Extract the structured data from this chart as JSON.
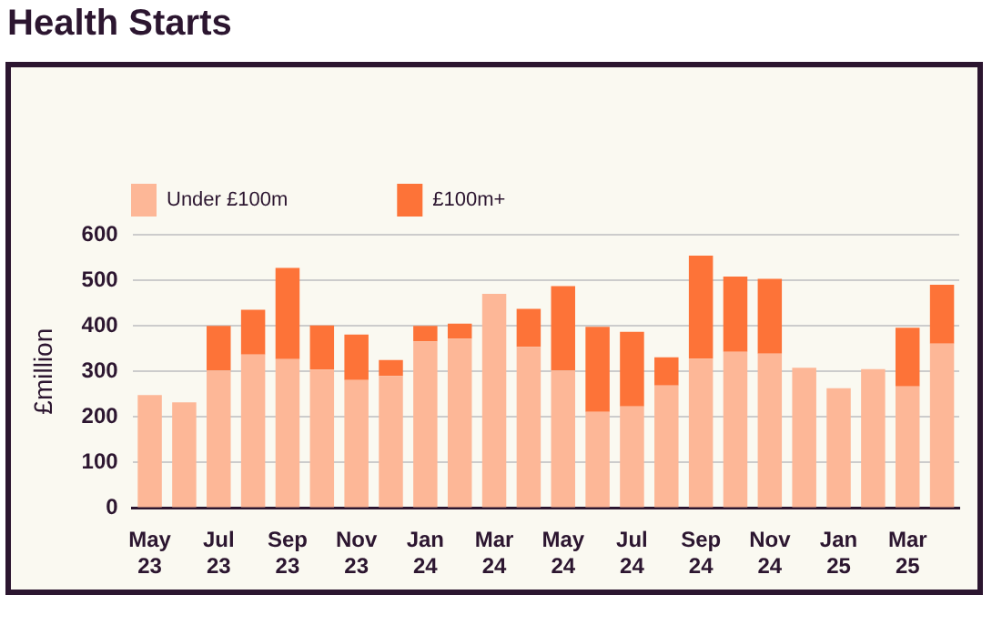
{
  "chart_data": {
    "type": "bar",
    "title": "Health Starts",
    "ylabel": "£million",
    "stacked": true,
    "categories": [
      "May 23",
      null,
      "Jul 23",
      null,
      "Sep 23",
      null,
      "Nov 23",
      null,
      "Jan 24",
      null,
      "Mar 24",
      null,
      "May 24",
      null,
      "Jul 24",
      null,
      "Sep 24",
      null,
      "Nov 24",
      null,
      "Jan 25",
      null,
      "Mar 25",
      null
    ],
    "series": [
      {
        "name": "Under £100m",
        "color": "#fdb797",
        "values": [
          248,
          232,
          302,
          337,
          327,
          304,
          281,
          290,
          366,
          372,
          470,
          354,
          302,
          211,
          223,
          269,
          328,
          343,
          339,
          308,
          263,
          305,
          267,
          361
        ]
      },
      {
        "name": "£100m+",
        "color": "#fd7338",
        "values": [
          null,
          null,
          98,
          98,
          200,
          97,
          100,
          35,
          34,
          33,
          null,
          83,
          185,
          187,
          164,
          62,
          226,
          165,
          164,
          null,
          null,
          null,
          129,
          129
        ]
      }
    ],
    "ylim": [
      0,
      600
    ],
    "yticks": [
      0,
      100,
      200,
      300,
      400,
      500,
      600
    ],
    "grid": "y",
    "legend": "top"
  }
}
